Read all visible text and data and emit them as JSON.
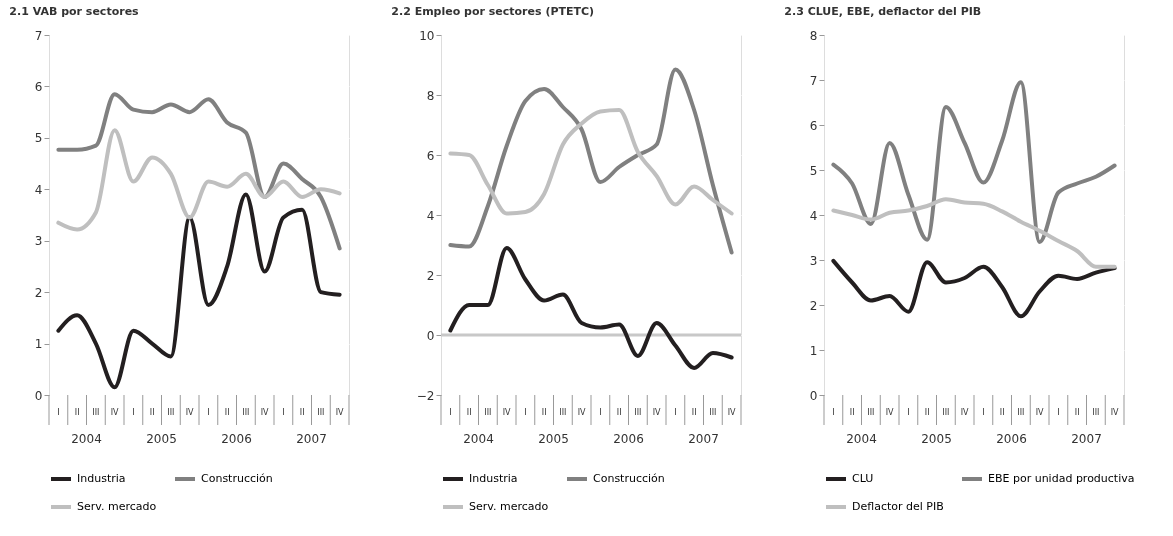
{
  "chart_data": [
    {
      "type": "line",
      "title": "2.1 VAB por sectores",
      "categories": [
        "I",
        "II",
        "III",
        "IV",
        "I",
        "II",
        "III",
        "IV",
        "I",
        "II",
        "III",
        "IV",
        "I",
        "II",
        "III",
        "IV"
      ],
      "annotations": [
        "2004",
        "2005",
        "2006",
        "2007"
      ],
      "ylim": [
        0,
        7
      ],
      "yticks": [
        0,
        1,
        2,
        3,
        4,
        5,
        6,
        7
      ],
      "grid": true,
      "legend": "bottom",
      "series": [
        {
          "name": "Industria",
          "color": "#231f20",
          "values": [
            1.25,
            1.55,
            1.0,
            0.15,
            1.25,
            1.0,
            0.75,
            3.45,
            1.75,
            2.5,
            3.9,
            2.4,
            3.45,
            3.6,
            2.0,
            1.95
          ]
        },
        {
          "name": "Construcción",
          "color": "#808080",
          "values": [
            4.77,
            4.77,
            4.85,
            5.85,
            5.55,
            5.5,
            5.65,
            5.5,
            5.75,
            5.3,
            5.1,
            3.85,
            4.5,
            4.2,
            3.85,
            2.85
          ]
        },
        {
          "name": "Serv. mercado",
          "color": "#bfbfbf",
          "values": [
            3.35,
            3.22,
            3.55,
            5.15,
            4.15,
            4.62,
            4.3,
            3.45,
            4.15,
            4.05,
            4.3,
            3.85,
            4.15,
            3.85,
            4.0,
            3.92
          ]
        }
      ]
    },
    {
      "type": "line",
      "title": "2.2 Empleo por sectores (PTETC)",
      "categories": [
        "I",
        "II",
        "III",
        "IV",
        "I",
        "II",
        "III",
        "IV",
        "I",
        "II",
        "III",
        "IV",
        "I",
        "II",
        "III",
        "IV"
      ],
      "annotations": [
        "2004",
        "2005",
        "2006",
        "2007"
      ],
      "ylim": [
        -2,
        10
      ],
      "yticks": [
        -2,
        0,
        2,
        4,
        6,
        8,
        10
      ],
      "grid": true,
      "legend": "bottom",
      "ref_lines": [
        {
          "axis": "y",
          "value": 0,
          "color": "#c8c8c8"
        }
      ],
      "series": [
        {
          "name": "Industria",
          "color": "#231f20",
          "values": [
            0.15,
            1.0,
            1.0,
            2.9,
            1.85,
            1.15,
            1.35,
            0.4,
            0.25,
            0.35,
            -0.7,
            0.4,
            -0.35,
            -1.1,
            -0.6,
            -0.75
          ]
        },
        {
          "name": "Construcción",
          "color": "#808080",
          "values": [
            3.0,
            2.95,
            4.3,
            6.3,
            7.8,
            8.2,
            7.6,
            6.85,
            5.1,
            5.6,
            6.0,
            6.35,
            8.85,
            7.5,
            5.0,
            2.75
          ]
        },
        {
          "name": "Serv. mercado",
          "color": "#bfbfbf",
          "values": [
            6.05,
            6.0,
            5.0,
            4.05,
            4.1,
            4.7,
            6.35,
            7.05,
            7.45,
            7.5,
            6.1,
            5.3,
            4.35,
            4.95,
            4.5,
            4.05
          ]
        }
      ]
    },
    {
      "type": "line",
      "title": "2.3 CLUE, EBE, deflactor del PIB",
      "categories": [
        "I",
        "II",
        "III",
        "IV",
        "I",
        "II",
        "III",
        "IV",
        "I",
        "II",
        "III",
        "IV",
        "I",
        "II",
        "III",
        "IV"
      ],
      "annotations": [
        "2004",
        "2005",
        "2006",
        "2007"
      ],
      "ylim": [
        0,
        8
      ],
      "yticks": [
        0,
        1,
        2,
        3,
        4,
        5,
        6,
        7,
        8
      ],
      "grid": true,
      "legend": "bottom",
      "series": [
        {
          "name": "CLU",
          "color": "#231f20",
          "values": [
            2.98,
            2.5,
            2.1,
            2.2,
            1.85,
            2.95,
            2.5,
            2.6,
            2.85,
            2.4,
            1.75,
            2.3,
            2.65,
            2.58,
            2.72,
            2.82
          ]
        },
        {
          "name": "EBE por unidad productiva",
          "color": "#808080",
          "values": [
            5.12,
            4.7,
            3.8,
            5.6,
            4.45,
            3.45,
            6.4,
            5.6,
            4.72,
            5.65,
            6.95,
            3.4,
            4.5,
            4.7,
            4.85,
            5.1
          ]
        },
        {
          "name": "Deflactor del PIB",
          "color": "#bfbfbf",
          "values": [
            4.1,
            4.0,
            3.9,
            4.05,
            4.1,
            4.2,
            4.35,
            4.28,
            4.25,
            4.08,
            3.85,
            3.65,
            3.42,
            3.2,
            2.85,
            2.85
          ]
        }
      ]
    }
  ]
}
